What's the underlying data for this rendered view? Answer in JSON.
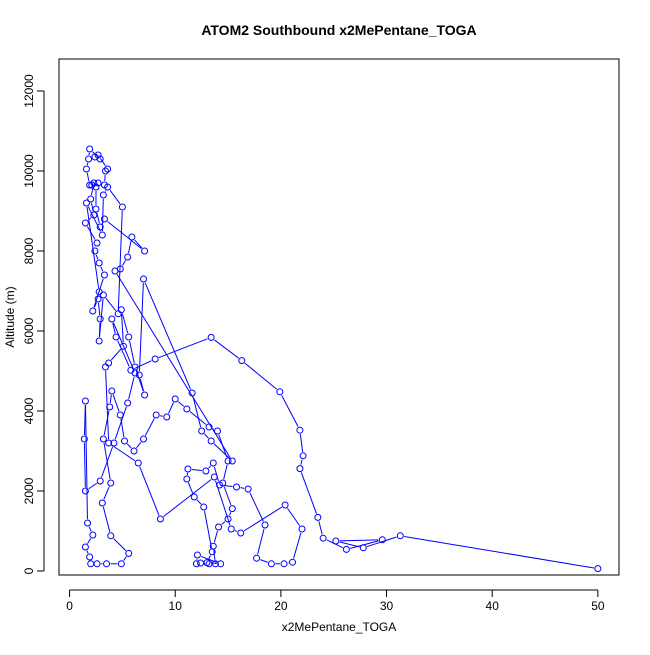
{
  "chart_data": {
    "type": "scatter",
    "title": "ATOM2 Southbound x2MePentane_TOGA",
    "xlabel": "x2MePentane_TOGA",
    "ylabel": "Altitude (m)",
    "xlim": [
      -1,
      52
    ],
    "ylim": [
      -100,
      12800
    ],
    "x_ticks": [
      0,
      10,
      20,
      30,
      40,
      50
    ],
    "y_ticks": [
      0,
      2000,
      4000,
      6000,
      8000,
      10000,
      12000
    ],
    "point_style": "open-circle",
    "color": "#0000FF",
    "series": [
      {
        "points": [
          [
            50.0,
            60
          ],
          [
            31.3,
            880
          ],
          [
            27.8,
            580
          ],
          [
            25.2,
            750
          ],
          [
            29.6,
            780
          ],
          [
            26.2,
            540
          ],
          [
            24.0,
            820
          ],
          [
            23.5,
            1340
          ],
          [
            21.8,
            2560
          ],
          [
            22.1,
            2880
          ],
          [
            21.8,
            3520
          ],
          [
            19.9,
            4480
          ],
          [
            16.3,
            5260
          ],
          [
            13.4,
            5840
          ],
          [
            8.1,
            5300
          ],
          [
            5.8,
            5020
          ],
          [
            4.4,
            5850
          ],
          [
            4.0,
            6300
          ],
          [
            6.2,
            4950
          ],
          [
            5.5,
            4200
          ],
          [
            4.2,
            3200
          ],
          [
            2.9,
            2250
          ],
          [
            1.5,
            2000
          ],
          [
            1.4,
            3300
          ],
          [
            1.5,
            4250
          ],
          [
            1.7,
            1200
          ],
          [
            2.2,
            900
          ],
          [
            1.5,
            600
          ],
          [
            1.9,
            350
          ],
          [
            2.0,
            180
          ],
          [
            2.6,
            180
          ],
          [
            3.5,
            180
          ],
          [
            4.9,
            180
          ],
          [
            5.6,
            440
          ],
          [
            3.9,
            880
          ],
          [
            3.1,
            1700
          ],
          [
            3.9,
            2200
          ],
          [
            3.2,
            3300
          ],
          [
            3.8,
            4100
          ],
          [
            4.0,
            4500
          ],
          [
            4.8,
            3900
          ],
          [
            5.2,
            3250
          ],
          [
            6.1,
            3000
          ],
          [
            7.0,
            3300
          ],
          [
            8.2,
            3900
          ],
          [
            9.2,
            3850
          ],
          [
            10.0,
            4300
          ],
          [
            11.1,
            4050
          ],
          [
            13.2,
            3600
          ],
          [
            14.0,
            3500
          ],
          [
            15.0,
            2750
          ],
          [
            14.5,
            2200
          ],
          [
            15.4,
            1560
          ],
          [
            15.0,
            1300
          ],
          [
            14.1,
            1100
          ],
          [
            13.6,
            620
          ],
          [
            13.8,
            180
          ],
          [
            13.2,
            180
          ],
          [
            12.4,
            200
          ],
          [
            12.0,
            180
          ],
          [
            12.1,
            400
          ],
          [
            14.3,
            180
          ],
          [
            13.0,
            210
          ],
          [
            13.5,
            480
          ],
          [
            12.7,
            1600
          ],
          [
            11.8,
            1850
          ],
          [
            11.1,
            2300
          ],
          [
            11.2,
            2550
          ],
          [
            12.9,
            2500
          ],
          [
            13.6,
            2700
          ],
          [
            14.2,
            2150
          ],
          [
            15.8,
            2100
          ],
          [
            16.9,
            2050
          ],
          [
            18.5,
            1150
          ],
          [
            17.7,
            320
          ],
          [
            19.1,
            180
          ],
          [
            20.3,
            180
          ],
          [
            21.1,
            220
          ],
          [
            22.0,
            1050
          ],
          [
            20.4,
            1650
          ],
          [
            16.2,
            950
          ],
          [
            15.3,
            1050
          ],
          [
            13.7,
            2350
          ],
          [
            8.6,
            1300
          ],
          [
            6.5,
            2700
          ],
          [
            3.7,
            3200
          ],
          [
            3.4,
            5100
          ],
          [
            3.7,
            5200
          ],
          [
            5.1,
            5620
          ],
          [
            4.9,
            6530
          ],
          [
            5.6,
            5850
          ],
          [
            6.2,
            5100
          ],
          [
            7.1,
            4400
          ],
          [
            6.6,
            4900
          ],
          [
            7.0,
            7300
          ],
          [
            11.6,
            4450
          ],
          [
            12.5,
            3500
          ],
          [
            13.4,
            3250
          ],
          [
            15.4,
            2750
          ],
          [
            4.3,
            7500
          ],
          [
            4.8,
            7550
          ],
          [
            5.5,
            7850
          ],
          [
            5.9,
            8350
          ],
          [
            7.1,
            8000
          ],
          [
            3.3,
            8800
          ],
          [
            2.9,
            8600
          ],
          [
            2.5,
            9050
          ],
          [
            2.5,
            9600
          ],
          [
            2.1,
            9650
          ],
          [
            2.7,
            9700
          ],
          [
            3.3,
            9650
          ],
          [
            3.4,
            10000
          ],
          [
            3.6,
            10050
          ],
          [
            2.7,
            10400
          ],
          [
            2.4,
            10350
          ],
          [
            2.9,
            10300
          ],
          [
            1.9,
            10550
          ],
          [
            1.8,
            10300
          ],
          [
            1.6,
            10050
          ],
          [
            1.9,
            9650
          ],
          [
            2.3,
            9700
          ],
          [
            2.0,
            9300
          ],
          [
            2.3,
            8900
          ],
          [
            1.5,
            8700
          ],
          [
            2.6,
            8200
          ],
          [
            2.4,
            8000
          ],
          [
            2.8,
            7700
          ],
          [
            3.3,
            7400
          ],
          [
            2.2,
            6500
          ],
          [
            2.7,
            6800
          ],
          [
            2.9,
            6300
          ],
          [
            2.8,
            5750
          ],
          [
            3.2,
            6900
          ],
          [
            4.6,
            6430
          ],
          [
            5.0,
            9100
          ],
          [
            3.6,
            9600
          ],
          [
            3.2,
            9400
          ],
          [
            3.1,
            8400
          ],
          [
            1.6,
            9200
          ],
          [
            2.8,
            6980
          ]
        ]
      }
    ]
  }
}
